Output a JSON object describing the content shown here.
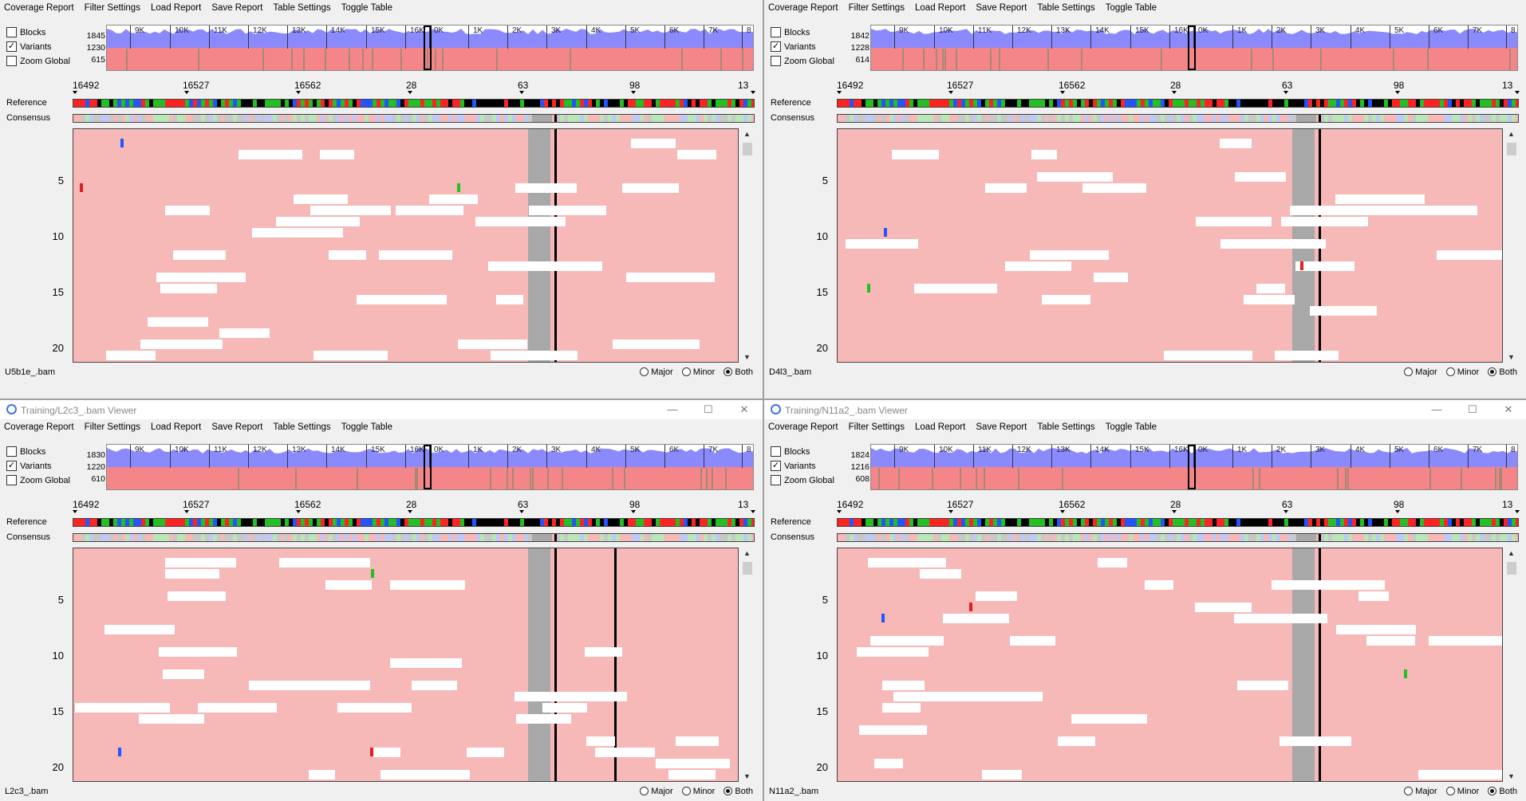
{
  "colors": {
    "overview_blue": "#8a8afc",
    "overview_red": "#f4868a",
    "base_A": "#ff2222",
    "base_C": "#2255ff",
    "base_G": "#22c022",
    "base_T": "#000000"
  },
  "menu": [
    "Coverage Report",
    "Filter Settings",
    "Load Report",
    "Save Report",
    "Table Settings",
    "Toggle Table"
  ],
  "overview": {
    "checkboxes": [
      {
        "label": "Blocks",
        "checked": false
      },
      {
        "label": "Variants",
        "checked": true
      },
      {
        "label": "Zoom Global",
        "checked": false
      }
    ],
    "ticks": [
      "9K",
      "10K",
      "11K",
      "12K",
      "13K",
      "14K",
      "15K",
      "16K",
      "0K",
      "1K",
      "2K",
      "3K",
      "4K",
      "5K",
      "6K",
      "7K",
      "8"
    ]
  },
  "ruler_ticks": [
    "16492",
    "16527",
    "16562",
    "28",
    "63",
    "98",
    "13"
  ],
  "labels": {
    "reference": "Reference",
    "consensus": "Consensus"
  },
  "row_numbers": [
    "5",
    "10",
    "15",
    "20"
  ],
  "radio": [
    {
      "label": "Major",
      "checked": false
    },
    {
      "label": "Minor",
      "checked": false
    },
    {
      "label": "Both",
      "checked": true
    }
  ],
  "window_controls": {
    "minimize": "—",
    "maximize": "☐",
    "close": "✕"
  },
  "panes": [
    {
      "title": "",
      "file": "U5b1e_.bam",
      "counts": [
        "1845",
        "1230",
        "615"
      ]
    },
    {
      "title": "",
      "file": "D4l3_.bam",
      "counts": [
        "1842",
        "1228",
        "614"
      ]
    },
    {
      "title": "Training/L2c3_.bam Viewer",
      "file": "L2c3_.bam",
      "counts": [
        "1830",
        "1220",
        "610"
      ]
    },
    {
      "title": "Training/N11a2_.bam Viewer",
      "file": "N11a2_.bam",
      "counts": [
        "1824",
        "1216",
        "608"
      ]
    }
  ]
}
